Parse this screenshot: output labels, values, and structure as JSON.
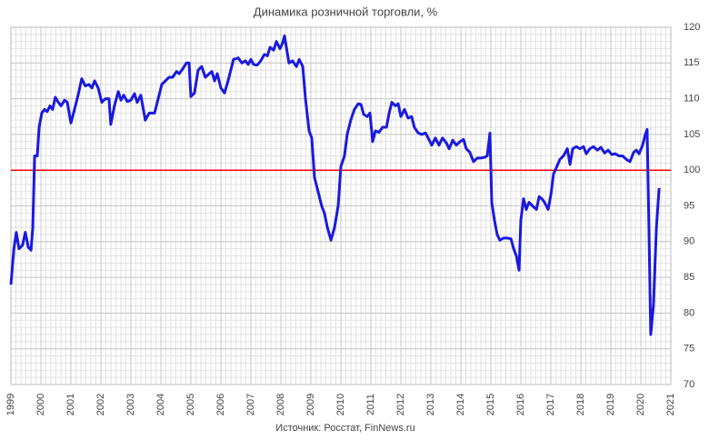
{
  "chart_data": {
    "type": "line",
    "title": "Динамика розничной торговли, %",
    "source": "Источник: Росстат, FinNews.ru",
    "xlim": [
      1999,
      2021
    ],
    "xticks": [
      1999,
      2000,
      2001,
      2002,
      2003,
      2004,
      2005,
      2006,
      2007,
      2008,
      2009,
      2010,
      2011,
      2012,
      2013,
      2014,
      2015,
      2016,
      2017,
      2018,
      2019,
      2020,
      2021
    ],
    "ylim": [
      70,
      120
    ],
    "yticks": [
      70,
      75,
      80,
      85,
      90,
      95,
      100,
      105,
      110,
      115,
      120
    ],
    "grid": true,
    "y_axis_side": "right",
    "reference_line": {
      "value": 100,
      "color": "#ff0000"
    },
    "x": [
      1999.0,
      1999.1,
      1999.18,
      1999.27,
      1999.39,
      1999.48,
      1999.58,
      1999.67,
      1999.73,
      1999.79,
      1999.88,
      1999.94,
      2000.03,
      2000.12,
      2000.21,
      2000.3,
      2000.39,
      2000.48,
      2000.58,
      2000.67,
      2000.79,
      2000.88,
      2001.0,
      2001.12,
      2001.24,
      2001.36,
      2001.48,
      2001.6,
      2001.7,
      2001.79,
      2001.91,
      2002.03,
      2002.15,
      2002.27,
      2002.33,
      2002.45,
      2002.58,
      2002.67,
      2002.76,
      2002.88,
      2003.0,
      2003.12,
      2003.21,
      2003.33,
      2003.48,
      2003.61,
      2003.79,
      2003.91,
      2004.03,
      2004.15,
      2004.27,
      2004.39,
      2004.52,
      2004.61,
      2004.73,
      2004.85,
      2004.94,
      2005.0,
      2005.12,
      2005.24,
      2005.36,
      2005.48,
      2005.61,
      2005.7,
      2005.79,
      2005.88,
      2006.0,
      2006.12,
      2006.24,
      2006.42,
      2006.58,
      2006.7,
      2006.82,
      2006.91,
      2007.0,
      2007.09,
      2007.21,
      2007.33,
      2007.45,
      2007.55,
      2007.64,
      2007.76,
      2007.85,
      2007.97,
      2008.06,
      2008.12,
      2008.27,
      2008.39,
      2008.52,
      2008.61,
      2008.73,
      2008.82,
      2008.94,
      2009.03,
      2009.12,
      2009.24,
      2009.36,
      2009.45,
      2009.55,
      2009.67,
      2009.79,
      2009.91,
      2010.0,
      2010.12,
      2010.21,
      2010.33,
      2010.45,
      2010.58,
      2010.67,
      2010.76,
      2010.88,
      2010.97,
      2011.06,
      2011.15,
      2011.27,
      2011.39,
      2011.52,
      2011.61,
      2011.7,
      2011.82,
      2011.91,
      2012.0,
      2012.12,
      2012.24,
      2012.36,
      2012.45,
      2012.58,
      2012.7,
      2012.82,
      2012.91,
      2013.03,
      2013.15,
      2013.27,
      2013.39,
      2013.52,
      2013.61,
      2013.73,
      2013.85,
      2013.97,
      2014.09,
      2014.18,
      2014.3,
      2014.42,
      2014.55,
      2014.67,
      2014.79,
      2014.88,
      2014.97,
      2015.03,
      2015.12,
      2015.21,
      2015.3,
      2015.42,
      2015.55,
      2015.67,
      2015.76,
      2015.85,
      2015.94,
      2016.0,
      2016.09,
      2016.18,
      2016.27,
      2016.39,
      2016.52,
      2016.61,
      2016.7,
      2016.79,
      2016.91,
      2017.0,
      2017.09,
      2017.18,
      2017.3,
      2017.42,
      2017.55,
      2017.64,
      2017.73,
      2017.85,
      2017.97,
      2018.09,
      2018.18,
      2018.3,
      2018.42,
      2018.55,
      2018.67,
      2018.79,
      2018.91,
      2019.03,
      2019.15,
      2019.27,
      2019.39,
      2019.52,
      2019.64,
      2019.76,
      2019.85,
      2019.94,
      2020.06,
      2020.15,
      2020.21,
      2020.27,
      2020.33,
      2020.42,
      2020.52,
      2020.61
    ],
    "series": [
      {
        "color": "#1a1ae0",
        "values": [
          84,
          89,
          91.3,
          89,
          89.5,
          91.3,
          89.2,
          88.8,
          92,
          102,
          102,
          106,
          108,
          108.5,
          108.2,
          109,
          108.5,
          110.2,
          109.5,
          109,
          109.8,
          109.5,
          106.6,
          108.5,
          110.5,
          112.8,
          111.8,
          112,
          111.5,
          112.5,
          111.5,
          109.5,
          110,
          110,
          106.4,
          109,
          111,
          109.8,
          110.5,
          109.6,
          109.8,
          110.7,
          109.5,
          110.5,
          107,
          108,
          108,
          110,
          112,
          112.5,
          113,
          113,
          113.8,
          113.5,
          114.2,
          115,
          115,
          110.3,
          110.8,
          114,
          114.5,
          113,
          113.5,
          113.8,
          112.5,
          113.5,
          111.5,
          110.8,
          112.5,
          115.5,
          115.7,
          115,
          115.3,
          114.8,
          115.5,
          114.8,
          114.7,
          115.3,
          116.2,
          116,
          117.2,
          116.8,
          118,
          117,
          117.8,
          118.8,
          115,
          115.3,
          114.5,
          115.5,
          114.5,
          110,
          105.5,
          104.5,
          99,
          97,
          95,
          94,
          92,
          90.2,
          92,
          95,
          100.5,
          102,
          105,
          107,
          108.5,
          109.3,
          109.2,
          107.8,
          107.5,
          108,
          104,
          105.5,
          105.3,
          106,
          106,
          108,
          109.5,
          109,
          109.3,
          107.5,
          108.5,
          107.3,
          107.5,
          106,
          105.2,
          105,
          105.2,
          104.5,
          103.5,
          104.5,
          103.5,
          104.5,
          103.8,
          103,
          104.2,
          103.5,
          104,
          104.3,
          103,
          102.5,
          101.2,
          101.7,
          101.7,
          101.8,
          102,
          105.2,
          95.5,
          93,
          91,
          90.2,
          90.5,
          90.5,
          90.4,
          89,
          88,
          86,
          93,
          96,
          94.5,
          95.5,
          95,
          94.5,
          96.3,
          96,
          95.5,
          94.5,
          96.5,
          99.5,
          100.3,
          101.5,
          102,
          103,
          100.8,
          103,
          103.3,
          103,
          103.3,
          102.3,
          103,
          103.3,
          102.8,
          103.2,
          102.4,
          102.8,
          102.2,
          102.3,
          102,
          102,
          101.5,
          101.2,
          102.5,
          102.8,
          102.3,
          103.5,
          105,
          105.7,
          92,
          77,
          81,
          92,
          97.5
        ]
      }
    ]
  }
}
